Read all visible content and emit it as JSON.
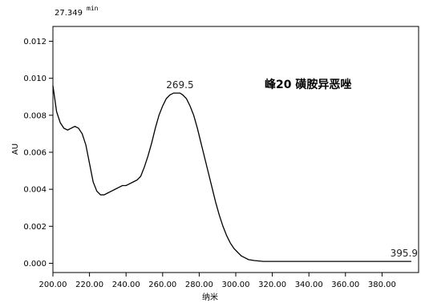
{
  "chart_data": {
    "type": "line",
    "header_label": "27.349",
    "header_unit": "min",
    "xlabel": "纳米",
    "ylabel": "AU",
    "annotation": "峰20 磺胺异恶唑",
    "xlim": [
      200,
      400
    ],
    "ylim": [
      -0.0005,
      0.0128
    ],
    "x_ticks": [
      "200.00",
      "220.00",
      "240.00",
      "260.00",
      "280.00",
      "300.00",
      "320.00",
      "340.00",
      "360.00",
      "380.00"
    ],
    "y_ticks": [
      "0.000",
      "0.002",
      "0.004",
      "0.006",
      "0.008",
      "0.010",
      "0.012"
    ],
    "peak_labels": [
      {
        "text": "269.5",
        "x": 269.5,
        "y": 0.0092
      },
      {
        "text": "395.9",
        "x": 395.9,
        "y": 0.0001
      }
    ],
    "series": [
      {
        "x": [
          200,
          202,
          204,
          206,
          208,
          210,
          212,
          214,
          216,
          218,
          220,
          222,
          224,
          226,
          228,
          230,
          232,
          234,
          236,
          238,
          240,
          242,
          244,
          246,
          248,
          250,
          252,
          254,
          256,
          258,
          260,
          262,
          264,
          266,
          268,
          269.5,
          271,
          273,
          275,
          277,
          279,
          281,
          283,
          285,
          287,
          289,
          291,
          293,
          295,
          297,
          299,
          301,
          303,
          305,
          307,
          310,
          315,
          320,
          330,
          340,
          350,
          360,
          370,
          380,
          390,
          396
        ],
        "y": [
          0.0096,
          0.0082,
          0.0076,
          0.0073,
          0.0072,
          0.0073,
          0.0074,
          0.0073,
          0.007,
          0.0064,
          0.0054,
          0.0044,
          0.0039,
          0.0037,
          0.0037,
          0.0038,
          0.0039,
          0.004,
          0.0041,
          0.0042,
          0.0042,
          0.0043,
          0.0044,
          0.0045,
          0.0047,
          0.0052,
          0.0058,
          0.0065,
          0.0073,
          0.008,
          0.0085,
          0.0089,
          0.0091,
          0.0092,
          0.0092,
          0.0092,
          0.0091,
          0.0089,
          0.0085,
          0.008,
          0.0073,
          0.0065,
          0.0057,
          0.0049,
          0.0041,
          0.0033,
          0.0026,
          0.002,
          0.0015,
          0.0011,
          0.0008,
          0.0006,
          0.0004,
          0.0003,
          0.0002,
          0.00015,
          0.0001,
          0.0001,
          0.0001,
          0.0001,
          0.0001,
          0.0001,
          0.0001,
          0.0001,
          0.0001,
          0.0001
        ]
      }
    ]
  }
}
